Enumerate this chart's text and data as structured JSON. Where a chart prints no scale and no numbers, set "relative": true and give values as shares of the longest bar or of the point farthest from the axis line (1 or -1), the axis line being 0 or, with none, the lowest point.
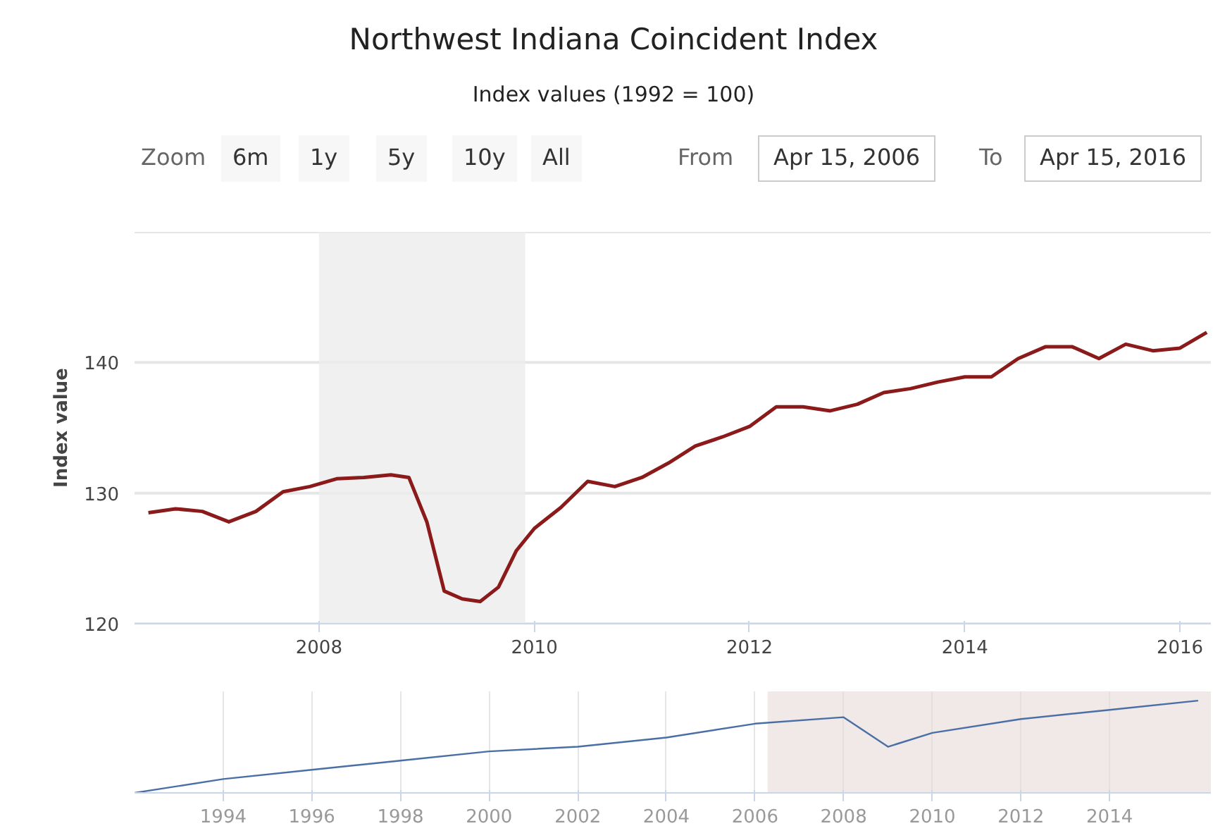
{
  "chart_data": [
    {
      "type": "line",
      "title": "Northwest Indiana Coincident Index",
      "subtitle": "Index values (1992 = 100)",
      "ylabel": "Index value",
      "annotations": [
        "Zoom",
        "6m",
        "1y",
        "5y",
        "10y",
        "All",
        "From",
        "Apr 15, 2006",
        "To",
        "Apr 15, 2016"
      ],
      "x": [
        "2006-06",
        "2006-09",
        "2006-12",
        "2007-03",
        "2007-06",
        "2007-09",
        "2007-12",
        "2008-03",
        "2008-06",
        "2008-09",
        "2008-11",
        "2009-01",
        "2009-03",
        "2009-05",
        "2009-07",
        "2009-09",
        "2009-11",
        "2010-01",
        "2010-04",
        "2010-07",
        "2010-10",
        "2011-01",
        "2011-04",
        "2011-07",
        "2011-10",
        "2012-01",
        "2012-04",
        "2012-07",
        "2012-10",
        "2013-01",
        "2013-04",
        "2013-07",
        "2013-10",
        "2014-01",
        "2014-04",
        "2014-07",
        "2014-10",
        "2015-01",
        "2015-04",
        "2015-07",
        "2015-10",
        "2016-01",
        "2016-04"
      ],
      "series": [
        {
          "color": "#8b1a1a",
          "values": [
            128.5,
            128.8,
            128.6,
            127.8,
            128.6,
            130.1,
            130.5,
            131.1,
            131.2,
            131.4,
            131.2,
            127.8,
            122.5,
            121.9,
            121.7,
            122.8,
            125.6,
            127.3,
            128.9,
            130.9,
            130.5,
            131.2,
            132.3,
            133.6,
            134.3,
            135.1,
            136.6,
            136.6,
            136.3,
            136.8,
            137.7,
            138.0,
            138.5,
            138.9,
            138.9,
            140.3,
            141.2,
            141.2,
            140.3,
            141.4,
            140.9,
            141.1,
            142.3
          ]
        }
      ],
      "xlim": [
        "2006-04-15",
        "2016-04-15"
      ],
      "xticks": [
        {
          "value": "2008",
          "label": "2008"
        },
        {
          "value": "2010",
          "label": "2010"
        },
        {
          "value": "2012",
          "label": "2012"
        },
        {
          "value": "2014",
          "label": "2014"
        },
        {
          "value": "2016",
          "label": "2016"
        }
      ],
      "ylim": [
        120,
        150
      ],
      "yticks": [
        120,
        130,
        140,
        {
          "value": 150,
          "label": null
        }
      ],
      "grid": "y",
      "bands": [
        {
          "axis": "x",
          "from": "2008-01",
          "to": "2009-12",
          "label": null,
          "color": "#ececec"
        }
      ]
    },
    {
      "type": "line",
      "relative": true,
      "tick_labels": "x",
      "x": [
        "1992",
        "1994",
        "1996",
        "1998",
        "2000",
        "2002",
        "2004",
        "2006",
        "2008",
        "2009",
        "2010",
        "2012",
        "2014",
        "2016"
      ],
      "series": [
        {
          "color": "#4a6fa5",
          "values": [
            0,
            0.15,
            0.25,
            0.35,
            0.45,
            0.5,
            0.6,
            0.75,
            0.82,
            0.5,
            0.65,
            0.8,
            0.9,
            1
          ]
        }
      ],
      "xlim": [
        "1992",
        "2016-04-15"
      ],
      "xticks": [
        {
          "value": "1994",
          "label": "1994"
        },
        {
          "value": "1996",
          "label": "1996"
        },
        {
          "value": "1998",
          "label": "1998"
        },
        {
          "value": "2000",
          "label": "2000"
        },
        {
          "value": "2002",
          "label": "2002"
        },
        {
          "value": "2004",
          "label": "2004"
        },
        {
          "value": "2006",
          "label": "2006"
        },
        {
          "value": "2008",
          "label": "2008"
        },
        {
          "value": "2010",
          "label": "2010"
        },
        {
          "value": "2012",
          "label": "2012"
        },
        {
          "value": "2014",
          "label": "2014"
        }
      ],
      "grid": "x",
      "bands": [
        {
          "axis": "x",
          "from": "2006-04-15",
          "to": "2016-04-15",
          "label": null,
          "color": "#e8d8d8"
        }
      ]
    }
  ]
}
